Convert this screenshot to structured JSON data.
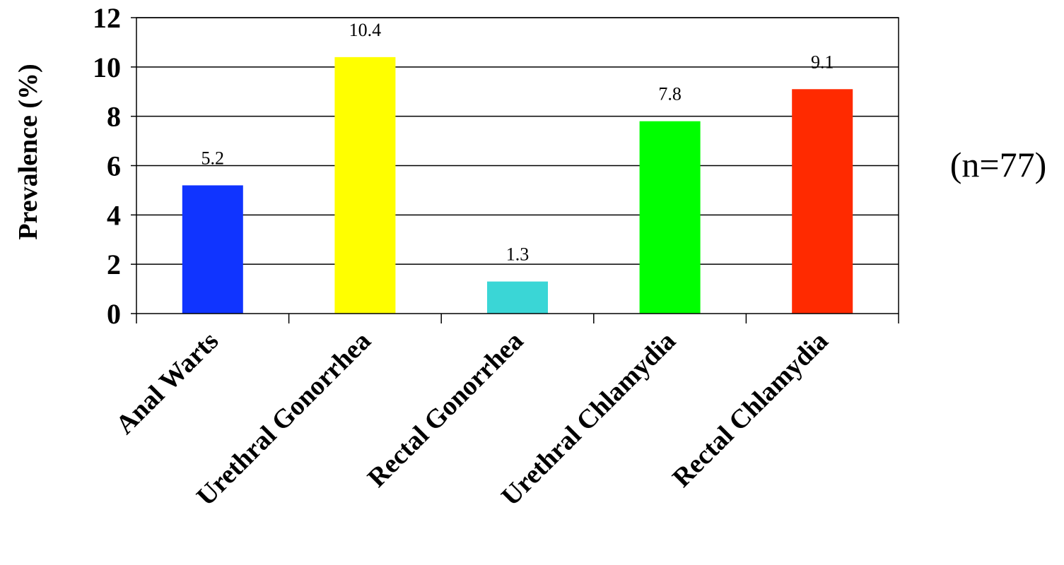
{
  "chart_data": {
    "type": "bar",
    "categories": [
      "Anal Warts",
      "Urethral Gonorrhea",
      "Rectal Gonorrhea",
      "Urethral Chlamydia",
      "Rectal Chlamydia"
    ],
    "values": [
      5.2,
      10.4,
      1.3,
      7.8,
      9.1
    ],
    "data_labels": [
      "5.2",
      "10.4",
      "1.3",
      "7.8",
      "9.1"
    ],
    "colors": [
      "#1034FF",
      "#FFFF00",
      "#3AD6D6",
      "#00FF00",
      "#FF2A00"
    ],
    "title": "",
    "xlabel": "",
    "ylabel": "Prevalence (%)",
    "ylim": [
      0,
      12
    ],
    "yticks": [
      0,
      2,
      4,
      6,
      8,
      10,
      12
    ],
    "grid": true,
    "legend": "none",
    "annotation": "(n=77)"
  }
}
